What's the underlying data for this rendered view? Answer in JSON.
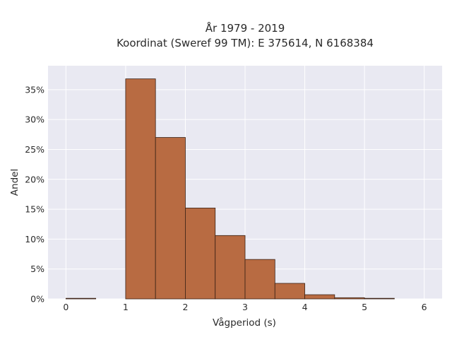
{
  "chart_data": {
    "type": "bar",
    "title_lines": [
      "År 1979 - 2019",
      "Koordinat (Sweref 99 TM): E 375614, N 6168384"
    ],
    "xlabel": "Vågperiod (s)",
    "ylabel": "Andel",
    "xlim": [
      -0.3,
      6.3
    ],
    "ylim": [
      0,
      0.39
    ],
    "x_ticks": [
      0,
      1,
      2,
      3,
      4,
      5,
      6
    ],
    "x_tick_labels": [
      "0",
      "1",
      "2",
      "3",
      "4",
      "5",
      "6"
    ],
    "y_ticks": [
      0,
      0.05,
      0.1,
      0.15,
      0.2,
      0.25,
      0.3,
      0.35
    ],
    "y_tick_labels": [
      "0%",
      "5%",
      "10%",
      "15%",
      "20%",
      "25%",
      "30%",
      "35%"
    ],
    "bin_width": 0.5,
    "bins": [
      {
        "start": 0.0,
        "value": 0.001
      },
      {
        "start": 0.5,
        "value": 0.0
      },
      {
        "start": 1.0,
        "value": 0.368
      },
      {
        "start": 1.5,
        "value": 0.27
      },
      {
        "start": 2.0,
        "value": 0.152
      },
      {
        "start": 2.5,
        "value": 0.106
      },
      {
        "start": 3.0,
        "value": 0.066
      },
      {
        "start": 3.5,
        "value": 0.026
      },
      {
        "start": 4.0,
        "value": 0.007
      },
      {
        "start": 4.5,
        "value": 0.002
      },
      {
        "start": 5.0,
        "value": 0.001
      }
    ],
    "grid": true,
    "colors": {
      "bar_fill": "#b86b42",
      "bar_edge": "#3a2216",
      "plot_background": "#e9e9f2",
      "grid": "#ffffff"
    }
  }
}
